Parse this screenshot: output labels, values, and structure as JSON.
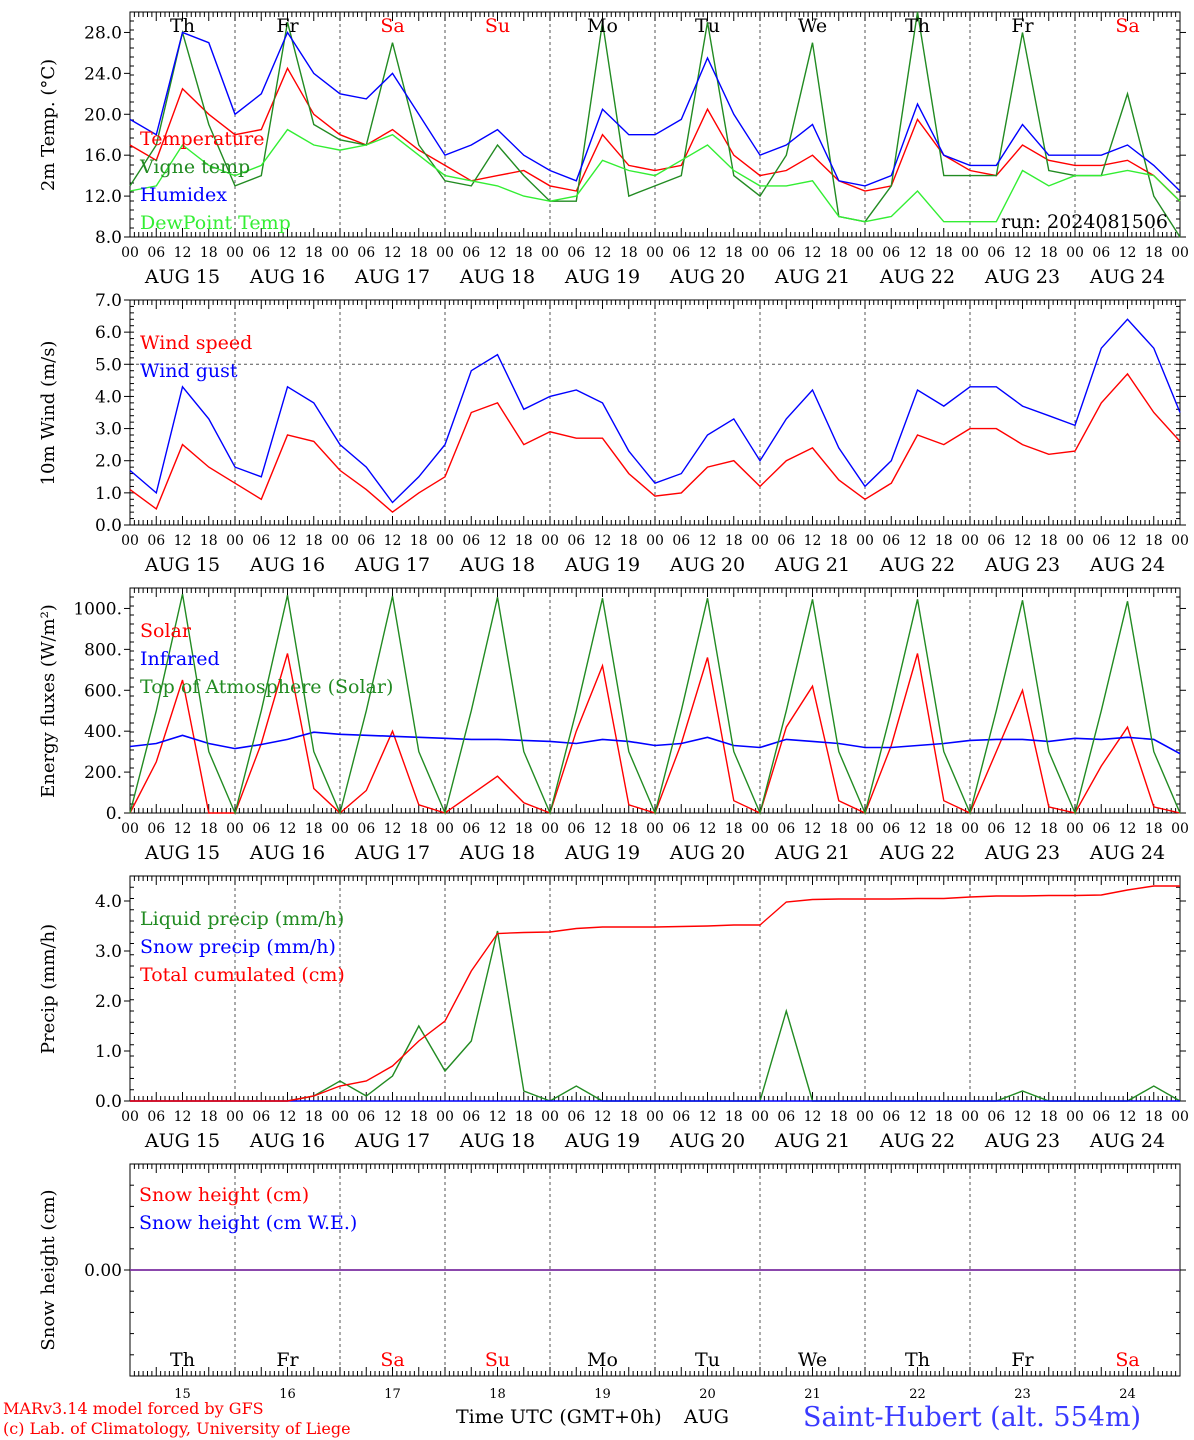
{
  "run_label": "run: 2024081506",
  "footer": {
    "model_line": "MARv3.14 model forced by GFS",
    "lab_line": "(c) Lab. of Climatology, University of Liege",
    "xaxis_label": "Time UTC (GMT+0h)",
    "month_label": "AUG",
    "station": "Saint-Hubert (alt. 554m)"
  },
  "colors": {
    "red": "#ff0000",
    "green": "#228b22",
    "blue": "#0000ff",
    "lightgreen": "#33ee33",
    "purple": "#7b2fa0",
    "grid": "#555555"
  },
  "days": [
    "15",
    "16",
    "17",
    "18",
    "19",
    "20",
    "21",
    "22",
    "23",
    "24"
  ],
  "day_labels": [
    "AUG 15",
    "AUG 16",
    "AUG 17",
    "AUG 18",
    "AUG 19",
    "AUG 20",
    "AUG 21",
    "AUG 22",
    "AUG 23",
    "AUG 24"
  ],
  "weekdays": [
    "Th",
    "Fr",
    "Sa",
    "Su",
    "Mo",
    "Tu",
    "We",
    "Th",
    "Fr",
    "Sa"
  ],
  "weekday_colors": [
    "#000000",
    "#000000",
    "#ff0000",
    "#ff0000",
    "#000000",
    "#000000",
    "#000000",
    "#000000",
    "#000000",
    "#ff0000"
  ],
  "hour_ticks": [
    "00",
    "06",
    "12",
    "18"
  ],
  "chart_data": [
    {
      "type": "line",
      "ylabel": "2m Temp. (°C)",
      "ylim": [
        8,
        30
      ],
      "yticks": [
        "8.0",
        "12.0",
        "16.0",
        "20.0",
        "24.0",
        "28.0"
      ],
      "x_unit": "hours since AUG 15 00 UTC",
      "x": [
        0,
        6,
        12,
        18,
        24,
        30,
        36,
        42,
        48,
        54,
        60,
        66,
        72,
        78,
        84,
        90,
        96,
        102,
        108,
        114,
        120,
        126,
        132,
        138,
        144,
        150,
        156,
        162,
        168,
        174,
        180,
        186,
        192,
        198,
        204,
        210,
        216,
        222,
        228,
        234,
        240
      ],
      "series": [
        {
          "name": "Temperature",
          "color": "#ff0000",
          "values": [
            17,
            15.5,
            22.5,
            20,
            18,
            18.5,
            24.5,
            20,
            18,
            17,
            18.5,
            16.5,
            15,
            13.5,
            14,
            14.5,
            13,
            12.5,
            18,
            15,
            14.5,
            15,
            20.5,
            16,
            14,
            14.5,
            16,
            13.5,
            12.5,
            13,
            19.5,
            16,
            14.5,
            14,
            17,
            15.5,
            15,
            15,
            15.5,
            14,
            11.5
          ]
        },
        {
          "name": "Vigne temp",
          "color": "#228b22",
          "values": [
            13,
            17,
            28,
            19,
            13,
            14,
            29,
            19,
            17.5,
            17,
            27,
            17,
            13.5,
            13,
            17,
            14,
            11.5,
            11.5,
            29,
            12,
            13,
            14,
            29,
            14,
            12,
            16,
            27,
            10,
            9.5,
            13,
            30,
            14,
            14,
            14,
            28,
            14.5,
            14,
            14,
            22,
            12,
            8
          ]
        },
        {
          "name": "Humidex",
          "color": "#0000ff",
          "values": [
            19.5,
            18,
            28,
            27,
            20,
            22,
            28,
            24,
            22,
            21.5,
            24,
            20,
            16,
            17,
            18.5,
            16,
            14.5,
            13.5,
            20.5,
            18,
            18,
            19.5,
            25.5,
            20,
            16,
            17,
            19,
            13.5,
            13,
            14,
            21,
            16,
            15,
            15,
            19,
            16,
            16,
            16,
            17,
            15,
            12.5
          ]
        },
        {
          "name": "DewPoint Temp",
          "color": "#33ee33",
          "values": [
            12.5,
            13,
            17,
            15,
            14,
            15,
            18.5,
            17,
            16.5,
            17,
            18,
            16,
            14,
            13.5,
            13,
            12,
            11.5,
            12,
            15.5,
            14.5,
            14,
            15.5,
            17,
            14.5,
            13,
            13,
            13.5,
            10,
            9.5,
            10,
            12.5,
            9.5,
            9.5,
            9.5,
            14.5,
            13,
            14,
            14,
            14.5,
            14,
            11.5
          ]
        }
      ]
    },
    {
      "type": "line",
      "ylabel": "10m Wind (m/s)",
      "ylim": [
        0,
        7
      ],
      "yticks": [
        "0.0",
        "1.0",
        "2.0",
        "3.0",
        "4.0",
        "5.0",
        "6.0",
        "7.0"
      ],
      "reference_line": 5,
      "x": [
        0,
        6,
        12,
        18,
        24,
        30,
        36,
        42,
        48,
        54,
        60,
        66,
        72,
        78,
        84,
        90,
        96,
        102,
        108,
        114,
        120,
        126,
        132,
        138,
        144,
        150,
        156,
        162,
        168,
        174,
        180,
        186,
        192,
        198,
        204,
        210,
        216,
        222,
        228,
        234,
        240
      ],
      "series": [
        {
          "name": "Wind speed",
          "color": "#ff0000",
          "values": [
            1.1,
            0.5,
            2.5,
            1.8,
            1.3,
            0.8,
            2.8,
            2.6,
            1.7,
            1.1,
            0.4,
            1,
            1.5,
            3.5,
            3.8,
            2.5,
            2.9,
            2.7,
            2.7,
            1.6,
            0.9,
            1,
            1.8,
            2,
            1.2,
            2,
            2.4,
            1.4,
            0.8,
            1.3,
            2.8,
            2.5,
            3.0,
            3.0,
            2.5,
            2.2,
            2.3,
            3.8,
            4.7,
            3.5,
            2.6
          ]
        },
        {
          "name": "Wind gust",
          "color": "#0000ff",
          "values": [
            1.7,
            1,
            4.3,
            3.3,
            1.8,
            1.5,
            4.3,
            3.8,
            2.5,
            1.8,
            0.7,
            1.5,
            2.5,
            4.8,
            5.3,
            3.6,
            4.0,
            4.2,
            3.8,
            2.3,
            1.3,
            1.6,
            2.8,
            3.3,
            2,
            3.3,
            4.2,
            2.4,
            1.2,
            2,
            4.2,
            3.7,
            4.3,
            4.3,
            3.7,
            3.4,
            3.1,
            5.5,
            6.4,
            5.5,
            3.5
          ]
        }
      ]
    },
    {
      "type": "line",
      "ylabel": "Energy fluxes (W/m²)",
      "ylim": [
        0,
        1100
      ],
      "yticks": [
        "0.",
        "200.",
        "400.",
        "600.",
        "800.",
        "1000."
      ],
      "x": [
        0,
        6,
        12,
        18,
        24,
        30,
        36,
        42,
        48,
        54,
        60,
        66,
        72,
        78,
        84,
        90,
        96,
        102,
        108,
        114,
        120,
        126,
        132,
        138,
        144,
        150,
        156,
        162,
        168,
        174,
        180,
        186,
        192,
        198,
        204,
        210,
        216,
        222,
        228,
        234,
        240
      ],
      "series": [
        {
          "name": "Solar",
          "color": "#ff0000",
          "values": [
            0,
            250,
            650,
            0,
            0,
            340,
            780,
            120,
            0,
            110,
            400,
            40,
            0,
            90,
            180,
            50,
            0,
            400,
            720,
            40,
            0,
            340,
            760,
            60,
            0,
            420,
            620,
            60,
            0,
            330,
            780,
            60,
            0,
            300,
            600,
            30,
            0,
            230,
            420,
            30,
            0
          ]
        },
        {
          "name": "Infrared",
          "color": "#0000ff",
          "values": [
            325,
            340,
            380,
            340,
            315,
            335,
            360,
            395,
            385,
            380,
            375,
            370,
            365,
            360,
            360,
            355,
            350,
            340,
            360,
            350,
            330,
            340,
            370,
            330,
            320,
            360,
            350,
            340,
            320,
            320,
            330,
            340,
            355,
            360,
            360,
            350,
            365,
            360,
            370,
            360,
            290
          ]
        },
        {
          "name": "Top of Atmosphere (Solar)",
          "color": "#228b22",
          "values": [
            0,
            500,
            1070,
            300,
            0,
            500,
            1065,
            300,
            0,
            500,
            1060,
            300,
            0,
            500,
            1055,
            300,
            0,
            500,
            1050,
            300,
            0,
            500,
            1050,
            300,
            0,
            500,
            1045,
            300,
            0,
            500,
            1045,
            300,
            0,
            500,
            1040,
            300,
            0,
            500,
            1035,
            300,
            0
          ]
        }
      ]
    },
    {
      "type": "line",
      "ylabel": "Precip (mm/h)",
      "ylim": [
        0,
        4.5
      ],
      "yticks": [
        "0.0",
        "1.0",
        "2.0",
        "3.0",
        "4.0"
      ],
      "x": [
        0,
        6,
        12,
        18,
        24,
        30,
        36,
        42,
        48,
        54,
        60,
        66,
        72,
        78,
        84,
        90,
        96,
        102,
        108,
        114,
        120,
        126,
        132,
        138,
        144,
        150,
        156,
        162,
        168,
        174,
        180,
        186,
        192,
        198,
        204,
        210,
        216,
        222,
        228,
        234,
        240
      ],
      "series": [
        {
          "name": "Liquid precip (mm/h)",
          "color": "#228b22",
          "values": [
            0,
            0,
            0,
            0,
            0,
            0,
            0,
            0.1,
            0.4,
            0.1,
            0.5,
            1.5,
            0.6,
            1.2,
            3.4,
            0.2,
            0,
            0.3,
            0,
            0,
            0,
            0,
            0,
            0,
            0,
            1.8,
            0,
            0,
            0,
            0,
            0,
            0,
            0,
            0,
            0.2,
            0,
            0,
            0,
            0,
            0.3,
            0
          ]
        },
        {
          "name": "Snow precip (mm/h)",
          "color": "#0000ff",
          "values": [
            0,
            0,
            0,
            0,
            0,
            0,
            0,
            0,
            0,
            0,
            0,
            0,
            0,
            0,
            0,
            0,
            0,
            0,
            0,
            0,
            0,
            0,
            0,
            0,
            0,
            0,
            0,
            0,
            0,
            0,
            0,
            0,
            0,
            0,
            0,
            0,
            0,
            0,
            0,
            0,
            0
          ]
        },
        {
          "name": "Total cumulated (cm)",
          "color": "#ff0000",
          "values": [
            0,
            0,
            0,
            0,
            0,
            0,
            0,
            0.1,
            0.3,
            0.4,
            0.7,
            1.2,
            1.6,
            2.6,
            3.35,
            3.37,
            3.38,
            3.45,
            3.48,
            3.48,
            3.48,
            3.49,
            3.5,
            3.52,
            3.52,
            3.98,
            4.03,
            4.04,
            4.04,
            4.04,
            4.05,
            4.05,
            4.08,
            4.1,
            4.1,
            4.11,
            4.11,
            4.12,
            4.22,
            4.3,
            4.3
          ]
        }
      ]
    },
    {
      "type": "line",
      "ylabel": "Snow height (cm)",
      "ylim": [
        -1,
        1
      ],
      "yticks": [
        "0.00"
      ],
      "x": [
        0,
        240
      ],
      "series": [
        {
          "name": "Snow height (cm)",
          "color": "#ff0000",
          "values": [
            0,
            0
          ]
        },
        {
          "name": "Snow height (cm W.E.)",
          "color": "#0000ff",
          "values": [
            0,
            0
          ]
        }
      ]
    }
  ]
}
